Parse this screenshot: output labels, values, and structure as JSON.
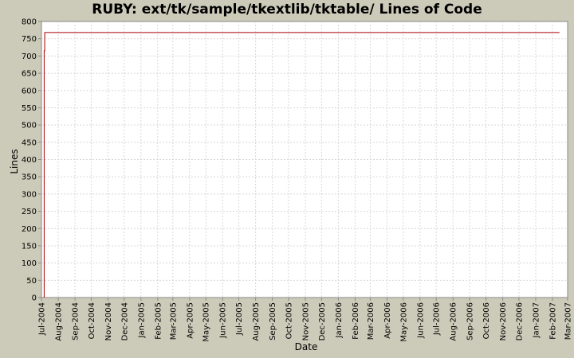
{
  "chart_data": {
    "type": "line",
    "title": "RUBY: ext/tk/sample/tkextlib/tktable/ Lines of Code",
    "xlabel": "Date",
    "ylabel": "Lines",
    "ylim": [
      0,
      800
    ],
    "y_ticks": [
      0,
      50,
      100,
      150,
      200,
      250,
      300,
      350,
      400,
      450,
      500,
      550,
      600,
      650,
      700,
      750,
      800
    ],
    "x_range": [
      "2004-07-01",
      "2007-03-01"
    ],
    "x_ticks": [
      {
        "date": "2004-07-01",
        "label": "Jul-2004"
      },
      {
        "date": "2004-08-01",
        "label": "Aug-2004"
      },
      {
        "date": "2004-09-01",
        "label": "Sep-2004"
      },
      {
        "date": "2004-10-01",
        "label": "Oct-2004"
      },
      {
        "date": "2004-11-01",
        "label": "Nov-2004"
      },
      {
        "date": "2004-12-01",
        "label": "Dec-2004"
      },
      {
        "date": "2005-01-01",
        "label": "Jan-2005"
      },
      {
        "date": "2005-02-01",
        "label": "Feb-2005"
      },
      {
        "date": "2005-03-01",
        "label": "Mar-2005"
      },
      {
        "date": "2005-04-01",
        "label": "Apr-2005"
      },
      {
        "date": "2005-05-01",
        "label": "May-2005"
      },
      {
        "date": "2005-06-01",
        "label": "Jun-2005"
      },
      {
        "date": "2005-07-01",
        "label": "Jul-2005"
      },
      {
        "date": "2005-08-01",
        "label": "Aug-2005"
      },
      {
        "date": "2005-09-01",
        "label": "Sep-2005"
      },
      {
        "date": "2005-10-01",
        "label": "Oct-2005"
      },
      {
        "date": "2005-11-01",
        "label": "Nov-2005"
      },
      {
        "date": "2005-12-01",
        "label": "Dec-2005"
      },
      {
        "date": "2006-01-01",
        "label": "Jan-2006"
      },
      {
        "date": "2006-02-01",
        "label": "Feb-2006"
      },
      {
        "date": "2006-03-01",
        "label": "Mar-2006"
      },
      {
        "date": "2006-04-01",
        "label": "Apr-2006"
      },
      {
        "date": "2006-05-01",
        "label": "May-2006"
      },
      {
        "date": "2006-06-01",
        "label": "Jun-2006"
      },
      {
        "date": "2006-07-01",
        "label": "Jul-2006"
      },
      {
        "date": "2006-08-01",
        "label": "Aug-2006"
      },
      {
        "date": "2006-09-01",
        "label": "Sep-2006"
      },
      {
        "date": "2006-10-01",
        "label": "Oct-2006"
      },
      {
        "date": "2006-11-01",
        "label": "Nov-2006"
      },
      {
        "date": "2006-12-01",
        "label": "Dec-2006"
      },
      {
        "date": "2007-01-01",
        "label": "Jan-2007"
      },
      {
        "date": "2007-02-01",
        "label": "Feb-2007"
      },
      {
        "date": "2007-03-01",
        "label": "Mar-2007"
      }
    ],
    "series": [
      {
        "color": "#aa0000",
        "points": [
          {
            "x": "2004-07-06",
            "y": 0
          },
          {
            "x": "2004-07-06",
            "y": 715
          },
          {
            "x": "2004-07-07",
            "y": 715
          },
          {
            "x": "2004-07-07",
            "y": 768
          },
          {
            "x": "2007-02-14",
            "y": 768
          }
        ]
      }
    ],
    "grid": true,
    "colors": {
      "background": "#cccbb9",
      "plot_background": "#ffffff",
      "grid": "#d8d8d8",
      "axis": "#888888"
    }
  }
}
